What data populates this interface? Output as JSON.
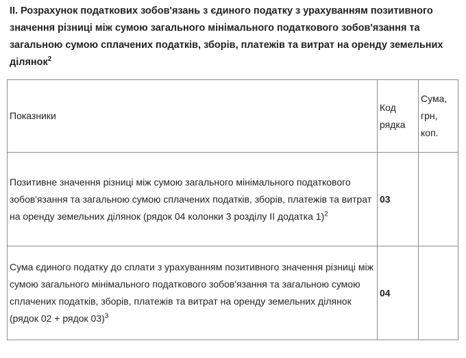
{
  "section_title": "II. Розрахунок податкових зобов'язань з єдиного податку з урахуванням позитивного значення різниці між сумою загального мінімального податкового зобов'язання та загальною сумою сплачених податків, зборів, платежів та витрат на оренду земельних ділянок",
  "section_title_footnote": "2",
  "table": {
    "headers": {
      "indicators": "Показники",
      "code": "Код рядка",
      "amount": "Сума, грн, коп."
    },
    "rows": [
      {
        "indicator": "Позитивне значення різниці між сумою загального мінімального податкового зобов'язання та загальною сумою сплачених податків, зборів, платежів та витрат на оренду земельних ділянок (рядок 04 колонки 3 розділу II додатка 1)",
        "footnote": "2",
        "code": "03",
        "amount": ""
      },
      {
        "indicator": "Сума єдиного податку до сплати з урахуванням позитивного значення різниці між сумою загального мінімального податкового зобов'язання та загальною сумою сплачених податків, зборів, платежів та витрат на оренду земельних ділянок (рядок 02 + рядок 03)",
        "footnote": "3",
        "code": "04",
        "amount": ""
      }
    ]
  }
}
